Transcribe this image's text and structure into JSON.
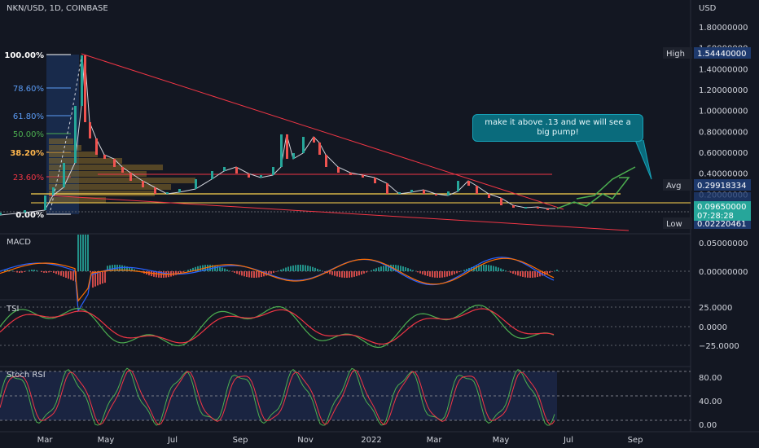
{
  "header": {
    "symbol_line": "NKN/USD, 1D, COINBASE"
  },
  "annotation": {
    "text": "make it above .13 and we will see a big pump!"
  },
  "panels": {
    "macd_label": "MACD",
    "tsi_label": "TSI",
    "stoch_label": "Stoch RSI"
  },
  "price_axis": {
    "unit": "USD",
    "ticks": [
      "1.80000000",
      "1.60000000",
      "1.40000000",
      "1.20000000",
      "1.00000000",
      "0.80000000",
      "0.60000000",
      "0.40000000",
      "0.20000000"
    ],
    "tags": [
      {
        "label": "High",
        "value": "1.54440000"
      },
      {
        "label": "Avg",
        "value": "0.29918334"
      },
      {
        "label": "Low",
        "value": "0.02220461"
      }
    ],
    "last_price": "0.09650000",
    "countdown": "07:28:28"
  },
  "fib_levels": [
    {
      "label": "100.00%",
      "color": "#ffffff"
    },
    {
      "label": "78.60%",
      "color": "#5b9cf6"
    },
    {
      "label": "61.80%",
      "color": "#5b9cf6"
    },
    {
      "label": "50.00%",
      "color": "#4caf50"
    },
    {
      "label": "38.20%",
      "color": "#ffb74d"
    },
    {
      "label": "23.60%",
      "color": "#f23645"
    },
    {
      "label": "0.00%",
      "color": "#ffffff"
    }
  ],
  "macd_axis": {
    "ticks": [
      "0.05000000",
      "0.00000000"
    ]
  },
  "tsi_axis": {
    "ticks": [
      "25.0000",
      "0.0000",
      "−25.0000"
    ]
  },
  "stoch_axis": {
    "ticks": [
      "80.00",
      "40.00",
      "0.00"
    ]
  },
  "time_axis": {
    "labels": [
      "Mar",
      "May",
      "Jul",
      "Sep",
      "Nov",
      "2022",
      "Mar",
      "May",
      "Jul",
      "Sep"
    ]
  },
  "chart_data": {
    "type": "line",
    "title": "NKN/USD, 1D, COINBASE",
    "x_labels": [
      "Mar",
      "May",
      "Jul",
      "Sep",
      "Nov",
      "2022",
      "Mar",
      "May",
      "Jul",
      "Sep"
    ],
    "price_series_approx": [
      {
        "x": "Feb",
        "y": 0.04
      },
      {
        "x": "Mar",
        "y": 0.2
      },
      {
        "x": "Apr",
        "y": 1.54
      },
      {
        "x": "Apr-late",
        "y": 0.85
      },
      {
        "x": "May",
        "y": 0.55
      },
      {
        "x": "Jun",
        "y": 0.3
      },
      {
        "x": "Jul",
        "y": 0.24
      },
      {
        "x": "Aug",
        "y": 0.3
      },
      {
        "x": "Sep",
        "y": 0.45
      },
      {
        "x": "Oct",
        "y": 0.5
      },
      {
        "x": "Nov",
        "y": 0.72
      },
      {
        "x": "Dec",
        "y": 0.35
      },
      {
        "x": "2022",
        "y": 0.28
      },
      {
        "x": "Feb",
        "y": 0.2
      },
      {
        "x": "Mar",
        "y": 0.22
      },
      {
        "x": "Apr",
        "y": 0.28
      },
      {
        "x": "May",
        "y": 0.12
      },
      {
        "x": "Jun",
        "y": 0.097
      }
    ],
    "price_levels": {
      "high": 1.5444,
      "avg": 0.29918334,
      "low": 0.02220461,
      "last": 0.0965
    },
    "ylim": [
      0,
      1.9
    ]
  }
}
